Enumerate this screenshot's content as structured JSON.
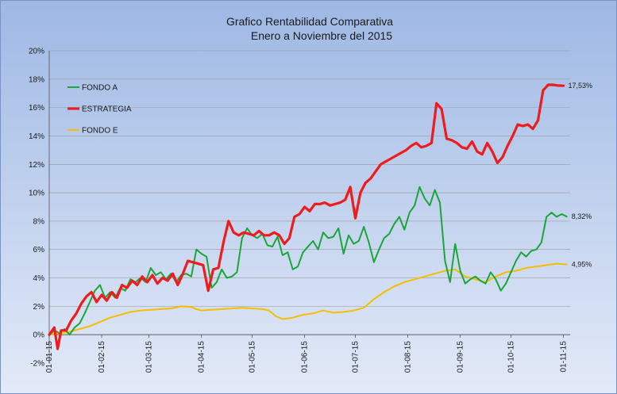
{
  "chart_data": {
    "type": "line",
    "title": "Grafico Rentabilidad Comparativa",
    "subtitle": "Enero a Noviembre del 2015",
    "ylim": [
      -2,
      20
    ],
    "yticks": [
      "-2%",
      "0%",
      "2%",
      "4%",
      "6%",
      "8%",
      "10%",
      "12%",
      "14%",
      "16%",
      "18%",
      "20%"
    ],
    "xticks": [
      {
        "label": "01-01-15",
        "x": 0
      },
      {
        "label": "01-02-15",
        "x": 31
      },
      {
        "label": "01-03-15",
        "x": 59
      },
      {
        "label": "01-04-15",
        "x": 90
      },
      {
        "label": "01-05-15",
        "x": 120
      },
      {
        "label": "01-06-15",
        "x": 151
      },
      {
        "label": "01-07-15",
        "x": 181
      },
      {
        "label": "01-08-15",
        "x": 212
      },
      {
        "label": "01-09-15",
        "x": 243
      },
      {
        "label": "01-10-15",
        "x": 273
      },
      {
        "label": "01-11-15",
        "x": 304
      }
    ],
    "xlim": [
      0,
      308
    ],
    "grid": "horizontal",
    "legend_position": "top-left",
    "series": [
      {
        "name": "FONDO A",
        "color": "#1aa63a",
        "end_label": "8,32%",
        "points": [
          [
            0,
            0
          ],
          [
            3,
            0.3
          ],
          [
            6,
            0.1
          ],
          [
            9,
            0.4
          ],
          [
            12,
            0
          ],
          [
            15,
            0.5
          ],
          [
            18,
            0.8
          ],
          [
            21,
            1.5
          ],
          [
            24,
            2.3
          ],
          [
            27,
            3.1
          ],
          [
            30,
            3.5
          ],
          [
            33,
            2.6
          ],
          [
            36,
            3.0
          ],
          [
            39,
            2.6
          ],
          [
            42,
            3.3
          ],
          [
            45,
            3.1
          ],
          [
            48,
            3.9
          ],
          [
            51,
            3.7
          ],
          [
            54,
            4.0
          ],
          [
            57,
            3.7
          ],
          [
            60,
            4.7
          ],
          [
            63,
            4.2
          ],
          [
            66,
            4.4
          ],
          [
            69,
            3.9
          ],
          [
            72,
            4.3
          ],
          [
            75,
            3.7
          ],
          [
            78,
            4.2
          ],
          [
            81,
            4.3
          ],
          [
            84,
            4.1
          ],
          [
            87,
            6.0
          ],
          [
            90,
            5.7
          ],
          [
            93,
            5.5
          ],
          [
            96,
            3.3
          ],
          [
            99,
            3.7
          ],
          [
            102,
            4.6
          ],
          [
            105,
            4.0
          ],
          [
            108,
            4.1
          ],
          [
            111,
            4.4
          ],
          [
            114,
            6.8
          ],
          [
            117,
            7.5
          ],
          [
            120,
            7.0
          ],
          [
            123,
            6.8
          ],
          [
            126,
            7.1
          ],
          [
            129,
            6.3
          ],
          [
            132,
            6.2
          ],
          [
            135,
            6.9
          ],
          [
            138,
            5.6
          ],
          [
            141,
            5.8
          ],
          [
            144,
            4.6
          ],
          [
            147,
            4.8
          ],
          [
            150,
            5.8
          ],
          [
            153,
            6.2
          ],
          [
            156,
            6.6
          ],
          [
            159,
            6.0
          ],
          [
            162,
            7.2
          ],
          [
            165,
            6.8
          ],
          [
            168,
            6.9
          ],
          [
            171,
            7.5
          ],
          [
            174,
            5.7
          ],
          [
            177,
            7.0
          ],
          [
            180,
            6.4
          ],
          [
            183,
            6.6
          ],
          [
            186,
            7.6
          ],
          [
            189,
            6.5
          ],
          [
            192,
            5.1
          ],
          [
            195,
            6.0
          ],
          [
            198,
            6.8
          ],
          [
            201,
            7.1
          ],
          [
            204,
            7.8
          ],
          [
            207,
            8.3
          ],
          [
            210,
            7.4
          ],
          [
            213,
            8.6
          ],
          [
            216,
            9.1
          ],
          [
            219,
            10.4
          ],
          [
            222,
            9.6
          ],
          [
            225,
            9.1
          ],
          [
            228,
            10.2
          ],
          [
            231,
            9.3
          ],
          [
            234,
            5.2
          ],
          [
            237,
            3.7
          ],
          [
            240,
            6.4
          ],
          [
            243,
            4.5
          ],
          [
            246,
            3.6
          ],
          [
            249,
            3.9
          ],
          [
            252,
            4.1
          ],
          [
            255,
            3.8
          ],
          [
            258,
            3.6
          ],
          [
            261,
            4.4
          ],
          [
            264,
            3.9
          ],
          [
            267,
            3.1
          ],
          [
            270,
            3.6
          ],
          [
            273,
            4.4
          ],
          [
            276,
            5.2
          ],
          [
            279,
            5.8
          ],
          [
            282,
            5.5
          ],
          [
            285,
            5.9
          ],
          [
            288,
            6.0
          ],
          [
            291,
            6.5
          ],
          [
            294,
            8.3
          ],
          [
            297,
            8.6
          ],
          [
            300,
            8.3
          ],
          [
            303,
            8.5
          ],
          [
            306,
            8.32
          ]
        ]
      },
      {
        "name": "ESTRATEGIA",
        "color": "#ee1c1c",
        "end_label": "17,53%",
        "points": [
          [
            0,
            0
          ],
          [
            3,
            0.5
          ],
          [
            5,
            -1.0
          ],
          [
            7,
            0.3
          ],
          [
            10,
            0.3
          ],
          [
            13,
            1.0
          ],
          [
            16,
            1.5
          ],
          [
            19,
            2.2
          ],
          [
            22,
            2.7
          ],
          [
            25,
            3.0
          ],
          [
            28,
            2.3
          ],
          [
            31,
            2.8
          ],
          [
            34,
            2.4
          ],
          [
            37,
            3.0
          ],
          [
            40,
            2.6
          ],
          [
            43,
            3.5
          ],
          [
            46,
            3.3
          ],
          [
            49,
            3.8
          ],
          [
            52,
            3.5
          ],
          [
            55,
            4.1
          ],
          [
            58,
            3.7
          ],
          [
            61,
            4.2
          ],
          [
            64,
            3.6
          ],
          [
            67,
            4.0
          ],
          [
            70,
            3.8
          ],
          [
            73,
            4.3
          ],
          [
            76,
            3.5
          ],
          [
            79,
            4.3
          ],
          [
            82,
            5.2
          ],
          [
            85,
            5.1
          ],
          [
            88,
            5.0
          ],
          [
            91,
            4.9
          ],
          [
            94,
            3.1
          ],
          [
            97,
            4.6
          ],
          [
            100,
            4.7
          ],
          [
            103,
            6.5
          ],
          [
            106,
            8.0
          ],
          [
            109,
            7.2
          ],
          [
            112,
            7.0
          ],
          [
            115,
            7.2
          ],
          [
            118,
            7.1
          ],
          [
            121,
            7.0
          ],
          [
            124,
            7.3
          ],
          [
            127,
            7.0
          ],
          [
            130,
            7.0
          ],
          [
            133,
            7.2
          ],
          [
            136,
            7.0
          ],
          [
            139,
            6.4
          ],
          [
            142,
            6.8
          ],
          [
            145,
            8.3
          ],
          [
            148,
            8.5
          ],
          [
            151,
            9.0
          ],
          [
            154,
            8.7
          ],
          [
            157,
            9.2
          ],
          [
            160,
            9.2
          ],
          [
            163,
            9.3
          ],
          [
            166,
            9.1
          ],
          [
            169,
            9.2
          ],
          [
            172,
            9.3
          ],
          [
            175,
            9.5
          ],
          [
            178,
            10.4
          ],
          [
            181,
            8.2
          ],
          [
            184,
            10.0
          ],
          [
            187,
            10.7
          ],
          [
            190,
            11.0
          ],
          [
            193,
            11.5
          ],
          [
            196,
            12.0
          ],
          [
            199,
            12.2
          ],
          [
            202,
            12.4
          ],
          [
            205,
            12.6
          ],
          [
            208,
            12.8
          ],
          [
            211,
            13.0
          ],
          [
            214,
            13.3
          ],
          [
            217,
            13.5
          ],
          [
            220,
            13.2
          ],
          [
            223,
            13.3
          ],
          [
            226,
            13.5
          ],
          [
            229,
            16.3
          ],
          [
            232,
            15.9
          ],
          [
            235,
            13.8
          ],
          [
            238,
            13.7
          ],
          [
            241,
            13.5
          ],
          [
            244,
            13.2
          ],
          [
            247,
            13.1
          ],
          [
            250,
            13.6
          ],
          [
            253,
            12.9
          ],
          [
            256,
            12.7
          ],
          [
            259,
            13.5
          ],
          [
            262,
            12.9
          ],
          [
            265,
            12.1
          ],
          [
            268,
            12.5
          ],
          [
            271,
            13.3
          ],
          [
            274,
            14.0
          ],
          [
            277,
            14.8
          ],
          [
            280,
            14.7
          ],
          [
            283,
            14.8
          ],
          [
            286,
            14.5
          ],
          [
            289,
            15.1
          ],
          [
            292,
            17.2
          ],
          [
            295,
            17.6
          ],
          [
            298,
            17.6
          ],
          [
            301,
            17.55
          ],
          [
            304,
            17.53
          ]
        ]
      },
      {
        "name": "FONDO E",
        "color": "#f5bf00",
        "end_label": "4,95%",
        "points": [
          [
            0,
            0
          ],
          [
            6,
            0.1
          ],
          [
            12,
            0.2
          ],
          [
            18,
            0.4
          ],
          [
            24,
            0.6
          ],
          [
            30,
            0.9
          ],
          [
            36,
            1.2
          ],
          [
            42,
            1.4
          ],
          [
            48,
            1.6
          ],
          [
            54,
            1.7
          ],
          [
            60,
            1.75
          ],
          [
            66,
            1.8
          ],
          [
            72,
            1.85
          ],
          [
            78,
            2.0
          ],
          [
            84,
            1.95
          ],
          [
            87,
            1.8
          ],
          [
            90,
            1.7
          ],
          [
            96,
            1.75
          ],
          [
            102,
            1.8
          ],
          [
            108,
            1.85
          ],
          [
            114,
            1.9
          ],
          [
            120,
            1.85
          ],
          [
            126,
            1.8
          ],
          [
            130,
            1.7
          ],
          [
            134,
            1.3
          ],
          [
            138,
            1.1
          ],
          [
            144,
            1.2
          ],
          [
            150,
            1.4
          ],
          [
            156,
            1.5
          ],
          [
            162,
            1.7
          ],
          [
            168,
            1.55
          ],
          [
            174,
            1.6
          ],
          [
            180,
            1.7
          ],
          [
            186,
            1.9
          ],
          [
            192,
            2.5
          ],
          [
            198,
            3.0
          ],
          [
            204,
            3.4
          ],
          [
            210,
            3.7
          ],
          [
            216,
            3.9
          ],
          [
            222,
            4.1
          ],
          [
            228,
            4.3
          ],
          [
            234,
            4.5
          ],
          [
            240,
            4.6
          ],
          [
            246,
            4.1
          ],
          [
            252,
            3.9
          ],
          [
            258,
            3.7
          ],
          [
            264,
            4.1
          ],
          [
            270,
            4.4
          ],
          [
            276,
            4.5
          ],
          [
            282,
            4.7
          ],
          [
            288,
            4.8
          ],
          [
            294,
            4.9
          ],
          [
            300,
            5.0
          ],
          [
            306,
            4.95
          ]
        ]
      }
    ]
  }
}
